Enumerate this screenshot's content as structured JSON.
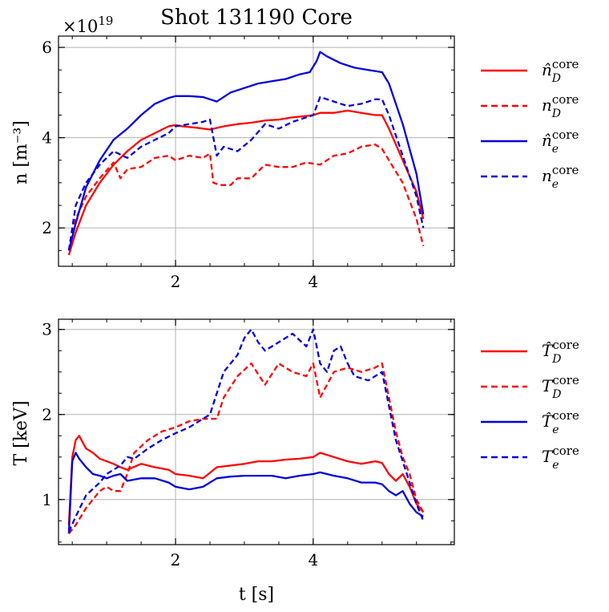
{
  "chart_data": [
    {
      "type": "line",
      "title": "Shot 131190 Core",
      "exponent_label": "×10",
      "exponent_power": "19",
      "xlabel": "t [s]",
      "ylabel": "n [m⁻³]",
      "xlim": [
        0.3,
        6.05
      ],
      "ylim": [
        1.15,
        6.25
      ],
      "xticks": [
        2,
        4
      ],
      "yticks": [
        2,
        4,
        6
      ],
      "xminor": 0.5,
      "yminor": 0.5,
      "grid": true,
      "legend_position": "right",
      "series": [
        {
          "name": "n̂_D^core",
          "color": "#ff0000",
          "style": "solid",
          "x": [
            0.45,
            0.55,
            0.7,
            0.9,
            1.1,
            1.3,
            1.5,
            1.7,
            1.9,
            2.0,
            2.1,
            2.3,
            2.5,
            2.7,
            2.9,
            3.1,
            3.3,
            3.5,
            3.7,
            3.9,
            4.0,
            4.1,
            4.3,
            4.5,
            4.7,
            4.9,
            5.0,
            5.1,
            5.3,
            5.5,
            5.6
          ],
          "values": [
            1.4,
            1.9,
            2.5,
            3.0,
            3.4,
            3.7,
            3.95,
            4.1,
            4.25,
            4.28,
            4.25,
            4.22,
            4.18,
            4.25,
            4.3,
            4.33,
            4.38,
            4.4,
            4.45,
            4.48,
            4.5,
            4.55,
            4.55,
            4.6,
            4.55,
            4.5,
            4.5,
            4.2,
            3.5,
            2.8,
            2.2
          ]
        },
        {
          "name": "n_D^core",
          "color": "#ff0000",
          "style": "dashed",
          "x": [
            0.45,
            0.55,
            0.7,
            0.9,
            1.1,
            1.2,
            1.3,
            1.5,
            1.7,
            1.9,
            2.0,
            2.2,
            2.4,
            2.5,
            2.55,
            2.65,
            2.8,
            2.9,
            3.1,
            3.3,
            3.5,
            3.7,
            3.9,
            4.1,
            4.3,
            4.5,
            4.7,
            4.9,
            5.0,
            5.1,
            5.3,
            5.5,
            5.6
          ],
          "values": [
            1.5,
            2.2,
            2.7,
            3.1,
            3.45,
            3.1,
            3.3,
            3.35,
            3.55,
            3.6,
            3.5,
            3.6,
            3.55,
            3.65,
            3.0,
            2.95,
            2.95,
            3.1,
            3.1,
            3.4,
            3.35,
            3.35,
            3.45,
            3.4,
            3.6,
            3.65,
            3.8,
            3.85,
            3.75,
            3.5,
            3.0,
            2.2,
            1.6
          ]
        },
        {
          "name": "n̂_e^core",
          "color": "#0000dd",
          "style": "solid",
          "x": [
            0.45,
            0.55,
            0.7,
            0.9,
            1.1,
            1.3,
            1.5,
            1.7,
            1.9,
            2.0,
            2.2,
            2.4,
            2.5,
            2.6,
            2.8,
            3.0,
            3.2,
            3.4,
            3.6,
            3.8,
            3.95,
            4.05,
            4.1,
            4.2,
            4.4,
            4.6,
            4.8,
            5.0,
            5.1,
            5.3,
            5.5,
            5.6
          ],
          "values": [
            1.5,
            2.1,
            2.9,
            3.5,
            3.95,
            4.2,
            4.5,
            4.75,
            4.88,
            4.92,
            4.92,
            4.9,
            4.85,
            4.8,
            5.0,
            5.1,
            5.2,
            5.25,
            5.3,
            5.4,
            5.45,
            5.7,
            5.9,
            5.8,
            5.65,
            5.55,
            5.5,
            5.45,
            5.2,
            4.3,
            3.2,
            2.3
          ]
        },
        {
          "name": "n_e^core",
          "color": "#0000dd",
          "style": "dashed",
          "x": [
            0.45,
            0.55,
            0.7,
            0.9,
            1.1,
            1.3,
            1.5,
            1.7,
            1.9,
            2.0,
            2.2,
            2.4,
            2.5,
            2.6,
            2.7,
            2.9,
            3.1,
            3.3,
            3.5,
            3.7,
            3.9,
            4.0,
            4.1,
            4.3,
            4.5,
            4.7,
            4.9,
            5.0,
            5.1,
            5.3,
            5.5,
            5.6
          ],
          "values": [
            1.5,
            2.5,
            3.0,
            3.4,
            3.7,
            3.55,
            3.8,
            3.95,
            4.1,
            4.25,
            4.3,
            4.35,
            4.4,
            3.6,
            3.8,
            3.7,
            3.95,
            4.3,
            4.2,
            4.35,
            4.45,
            4.5,
            4.9,
            4.8,
            4.7,
            4.75,
            4.85,
            4.85,
            4.5,
            3.6,
            2.7,
            2.0
          ]
        }
      ]
    },
    {
      "type": "line",
      "xlabel": "t [s]",
      "ylabel": "T [keV]",
      "xlim": [
        0.3,
        6.05
      ],
      "ylim": [
        0.47,
        3.12
      ],
      "xticks": [
        2,
        4
      ],
      "yticks": [
        1,
        2,
        3
      ],
      "xminor": 0.5,
      "yminor": 0.25,
      "grid": true,
      "legend_position": "right",
      "series": [
        {
          "name": "T̂_D^core",
          "color": "#ff0000",
          "style": "solid",
          "x": [
            0.45,
            0.5,
            0.55,
            0.6,
            0.7,
            0.8,
            0.9,
            1.0,
            1.1,
            1.2,
            1.3,
            1.5,
            1.7,
            1.9,
            2.0,
            2.2,
            2.4,
            2.6,
            2.8,
            3.0,
            3.2,
            3.4,
            3.6,
            3.8,
            4.0,
            4.1,
            4.3,
            4.5,
            4.7,
            4.9,
            5.0,
            5.1,
            5.2,
            5.3,
            5.4,
            5.5,
            5.6
          ],
          "values": [
            0.7,
            1.5,
            1.7,
            1.75,
            1.6,
            1.55,
            1.48,
            1.45,
            1.42,
            1.38,
            1.35,
            1.42,
            1.38,
            1.35,
            1.3,
            1.28,
            1.25,
            1.38,
            1.4,
            1.42,
            1.45,
            1.45,
            1.47,
            1.48,
            1.5,
            1.55,
            1.5,
            1.45,
            1.42,
            1.45,
            1.43,
            1.3,
            1.22,
            1.3,
            1.15,
            0.95,
            0.85
          ]
        },
        {
          "name": "T_D^core",
          "color": "#ff0000",
          "style": "dashed",
          "x": [
            0.45,
            0.55,
            0.7,
            0.9,
            1.0,
            1.1,
            1.2,
            1.3,
            1.4,
            1.6,
            1.8,
            2.0,
            2.2,
            2.4,
            2.6,
            2.7,
            2.9,
            3.1,
            3.3,
            3.5,
            3.7,
            3.9,
            4.0,
            4.1,
            4.3,
            4.5,
            4.7,
            4.9,
            5.0,
            5.1,
            5.2,
            5.3,
            5.4,
            5.5,
            5.6
          ],
          "values": [
            0.6,
            0.7,
            0.9,
            1.1,
            1.15,
            1.1,
            1.1,
            1.3,
            1.55,
            1.7,
            1.8,
            1.85,
            1.92,
            1.95,
            1.95,
            2.2,
            2.45,
            2.6,
            2.35,
            2.6,
            2.5,
            2.45,
            2.6,
            2.2,
            2.5,
            2.55,
            2.5,
            2.55,
            2.6,
            2.2,
            1.8,
            1.5,
            1.3,
            1.0,
            0.85
          ]
        },
        {
          "name": "T̂_e^core",
          "color": "#0000dd",
          "style": "solid",
          "x": [
            0.45,
            0.5,
            0.55,
            0.6,
            0.7,
            0.8,
            0.9,
            1.0,
            1.1,
            1.2,
            1.3,
            1.5,
            1.7,
            1.9,
            2.0,
            2.2,
            2.4,
            2.6,
            2.8,
            3.0,
            3.2,
            3.4,
            3.6,
            3.8,
            4.0,
            4.1,
            4.3,
            4.5,
            4.7,
            4.9,
            5.0,
            5.1,
            5.2,
            5.3,
            5.4,
            5.5,
            5.6
          ],
          "values": [
            0.6,
            1.45,
            1.55,
            1.48,
            1.38,
            1.3,
            1.28,
            1.25,
            1.28,
            1.3,
            1.22,
            1.25,
            1.25,
            1.2,
            1.15,
            1.12,
            1.15,
            1.25,
            1.27,
            1.28,
            1.28,
            1.28,
            1.25,
            1.28,
            1.3,
            1.32,
            1.28,
            1.25,
            1.2,
            1.2,
            1.18,
            1.1,
            1.05,
            1.1,
            0.95,
            0.85,
            0.8
          ]
        },
        {
          "name": "T_e^core",
          "color": "#0000dd",
          "style": "dashed",
          "x": [
            0.45,
            0.55,
            0.7,
            0.9,
            1.0,
            1.1,
            1.2,
            1.3,
            1.4,
            1.6,
            1.8,
            2.0,
            2.2,
            2.4,
            2.5,
            2.7,
            2.9,
            3.0,
            3.1,
            3.2,
            3.3,
            3.5,
            3.7,
            3.9,
            4.0,
            4.1,
            4.2,
            4.3,
            4.4,
            4.5,
            4.6,
            4.8,
            5.0,
            5.1,
            5.2,
            5.3,
            5.4,
            5.5,
            5.6
          ],
          "values": [
            0.62,
            0.8,
            1.05,
            1.2,
            1.3,
            1.35,
            1.4,
            1.5,
            1.48,
            1.6,
            1.7,
            1.78,
            1.85,
            1.95,
            2.0,
            2.5,
            2.7,
            2.9,
            3.0,
            2.85,
            2.75,
            2.85,
            2.95,
            2.8,
            3.0,
            2.6,
            2.5,
            2.75,
            2.8,
            2.6,
            2.45,
            2.4,
            2.5,
            2.1,
            1.7,
            1.45,
            1.2,
            0.95,
            0.75
          ]
        }
      ]
    }
  ]
}
